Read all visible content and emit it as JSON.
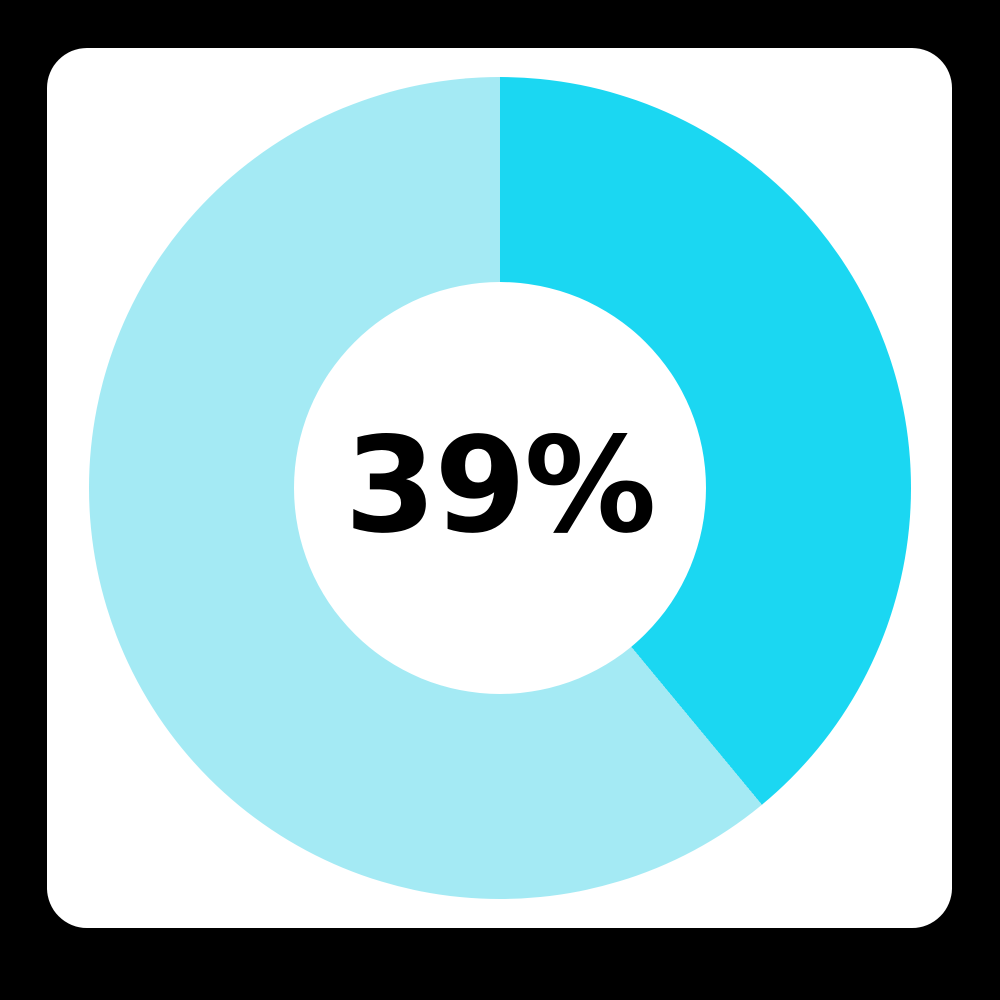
{
  "page": {
    "background_color": "#000000",
    "card_color": "#ffffff"
  },
  "chart_data": {
    "type": "pie",
    "subtype": "donut",
    "title": "",
    "center_label": "39%",
    "center_label_color": "#000000",
    "start_angle_deg": 0,
    "direction": "clockwise",
    "inner_radius_ratio": 0.5,
    "legend_position": "none",
    "slices": [
      {
        "name": "value",
        "value": 39,
        "color": "#1bd7f2"
      },
      {
        "name": "remainder",
        "value": 61,
        "color": "#a4eaf4"
      }
    ]
  }
}
